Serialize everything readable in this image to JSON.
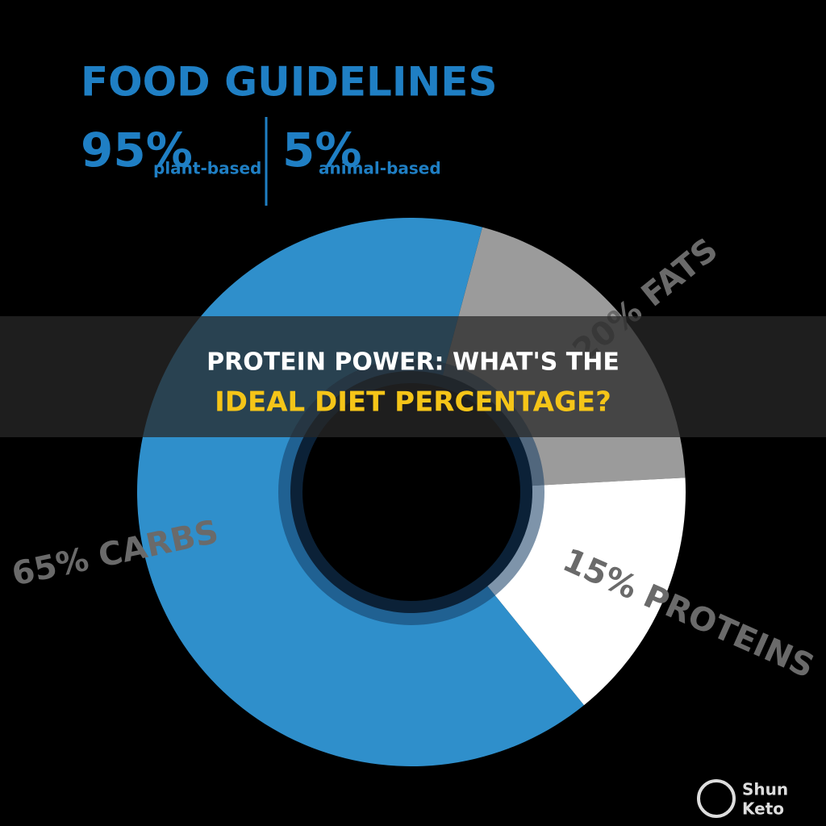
{
  "header": {
    "title": "FOOD GUIDELINES",
    "stats": [
      {
        "figure": "95%",
        "caption": "plant-based"
      },
      {
        "figure": "5%",
        "caption": "animal-based"
      }
    ]
  },
  "chart_data": {
    "type": "pie",
    "values": [
      20,
      15,
      65
    ],
    "value_labels": [
      "20% FATS",
      "15% PROTEINS",
      "65% CARBS"
    ],
    "colors": [
      "#9b9b9b",
      "#ffffff",
      "#2f8fcb"
    ]
  },
  "banner": {
    "line1": "PROTEIN POWER: WHAT'S THE",
    "line2": "IDEAL DIET PERCENTAGE?"
  },
  "logo": {
    "line1": "Shun",
    "line2": "Keto"
  }
}
